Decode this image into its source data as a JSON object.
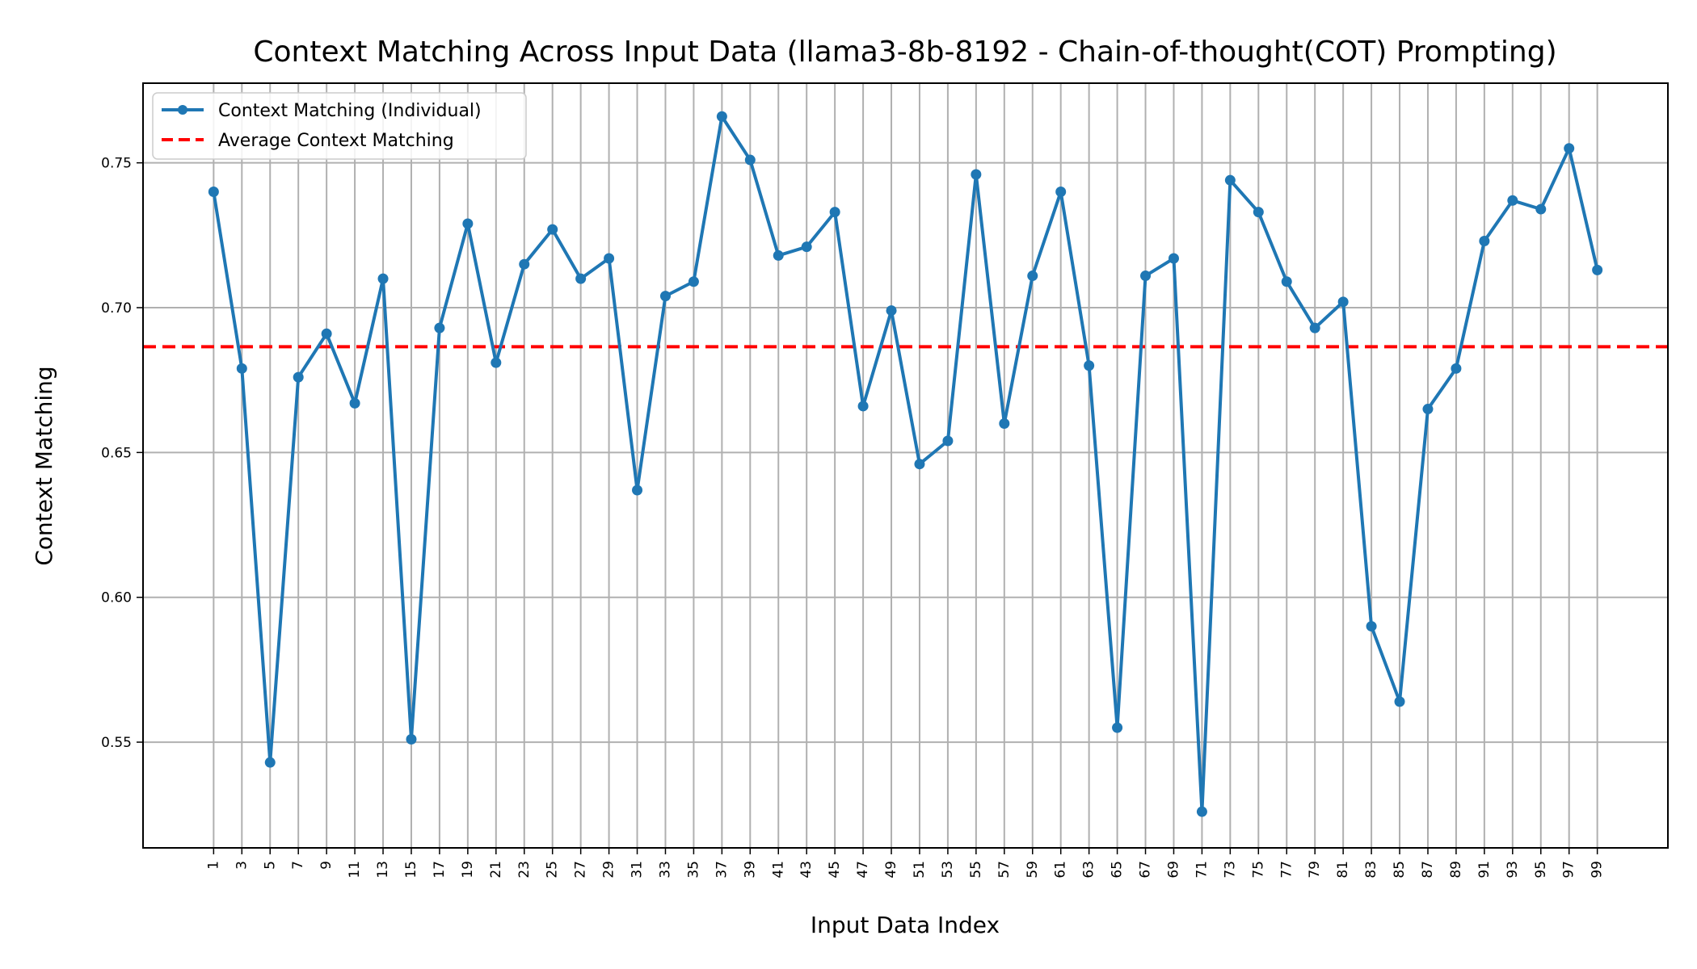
{
  "chart_data": {
    "type": "line",
    "title": "Context Matching Across Input Data (llama3-8b-8192 - Chain-of-thought(COT) Prompting)",
    "xlabel": "Input Data Index",
    "ylabel": "Context Matching",
    "x": [
      1,
      3,
      5,
      7,
      9,
      11,
      13,
      15,
      17,
      19,
      21,
      23,
      25,
      27,
      29,
      31,
      33,
      35,
      37,
      39,
      41,
      43,
      45,
      47,
      49,
      51,
      53,
      55,
      57,
      59,
      61,
      63,
      65,
      67,
      69,
      71,
      73,
      75,
      77,
      79,
      81,
      83,
      85,
      87,
      89,
      91,
      93,
      95,
      97,
      99
    ],
    "xticks": [
      1,
      3,
      5,
      7,
      9,
      11,
      13,
      15,
      17,
      19,
      21,
      23,
      25,
      27,
      29,
      31,
      33,
      35,
      37,
      39,
      41,
      43,
      45,
      47,
      49,
      51,
      53,
      55,
      57,
      59,
      61,
      63,
      65,
      67,
      69,
      71,
      73,
      75,
      77,
      79,
      81,
      83,
      85,
      87,
      89,
      91,
      93,
      95,
      97,
      99
    ],
    "xlim": [
      -4.0,
      104.0
    ],
    "ylim": [
      0.5135,
      0.7775
    ],
    "yticks": [
      0.55,
      0.6,
      0.65,
      0.7,
      0.75
    ],
    "ytick_labels": [
      "0.55",
      "0.60",
      "0.65",
      "0.70",
      "0.75"
    ],
    "grid": true,
    "legend_position": "upper-left",
    "series": [
      {
        "name": "Context Matching (Individual)",
        "style": "line-with-markers",
        "color": "#1f77b4",
        "values": [
          0.74,
          0.679,
          0.543,
          0.676,
          0.691,
          0.667,
          0.71,
          0.551,
          0.693,
          0.729,
          0.681,
          0.715,
          0.727,
          0.71,
          0.717,
          0.637,
          0.704,
          0.709,
          0.766,
          0.751,
          0.718,
          0.721,
          0.733,
          0.666,
          0.699,
          0.646,
          0.654,
          0.746,
          0.66,
          0.711,
          0.74,
          0.68,
          0.555,
          0.711,
          0.717,
          0.526,
          0.744,
          0.733,
          0.709,
          0.693,
          0.702,
          0.59,
          0.564,
          0.665,
          0.679,
          0.723,
          0.737,
          0.734,
          0.755,
          0.713
        ]
      },
      {
        "name": "Average Context Matching",
        "style": "dashed-horizontal",
        "color": "#ff0000",
        "value": 0.6865
      }
    ]
  }
}
